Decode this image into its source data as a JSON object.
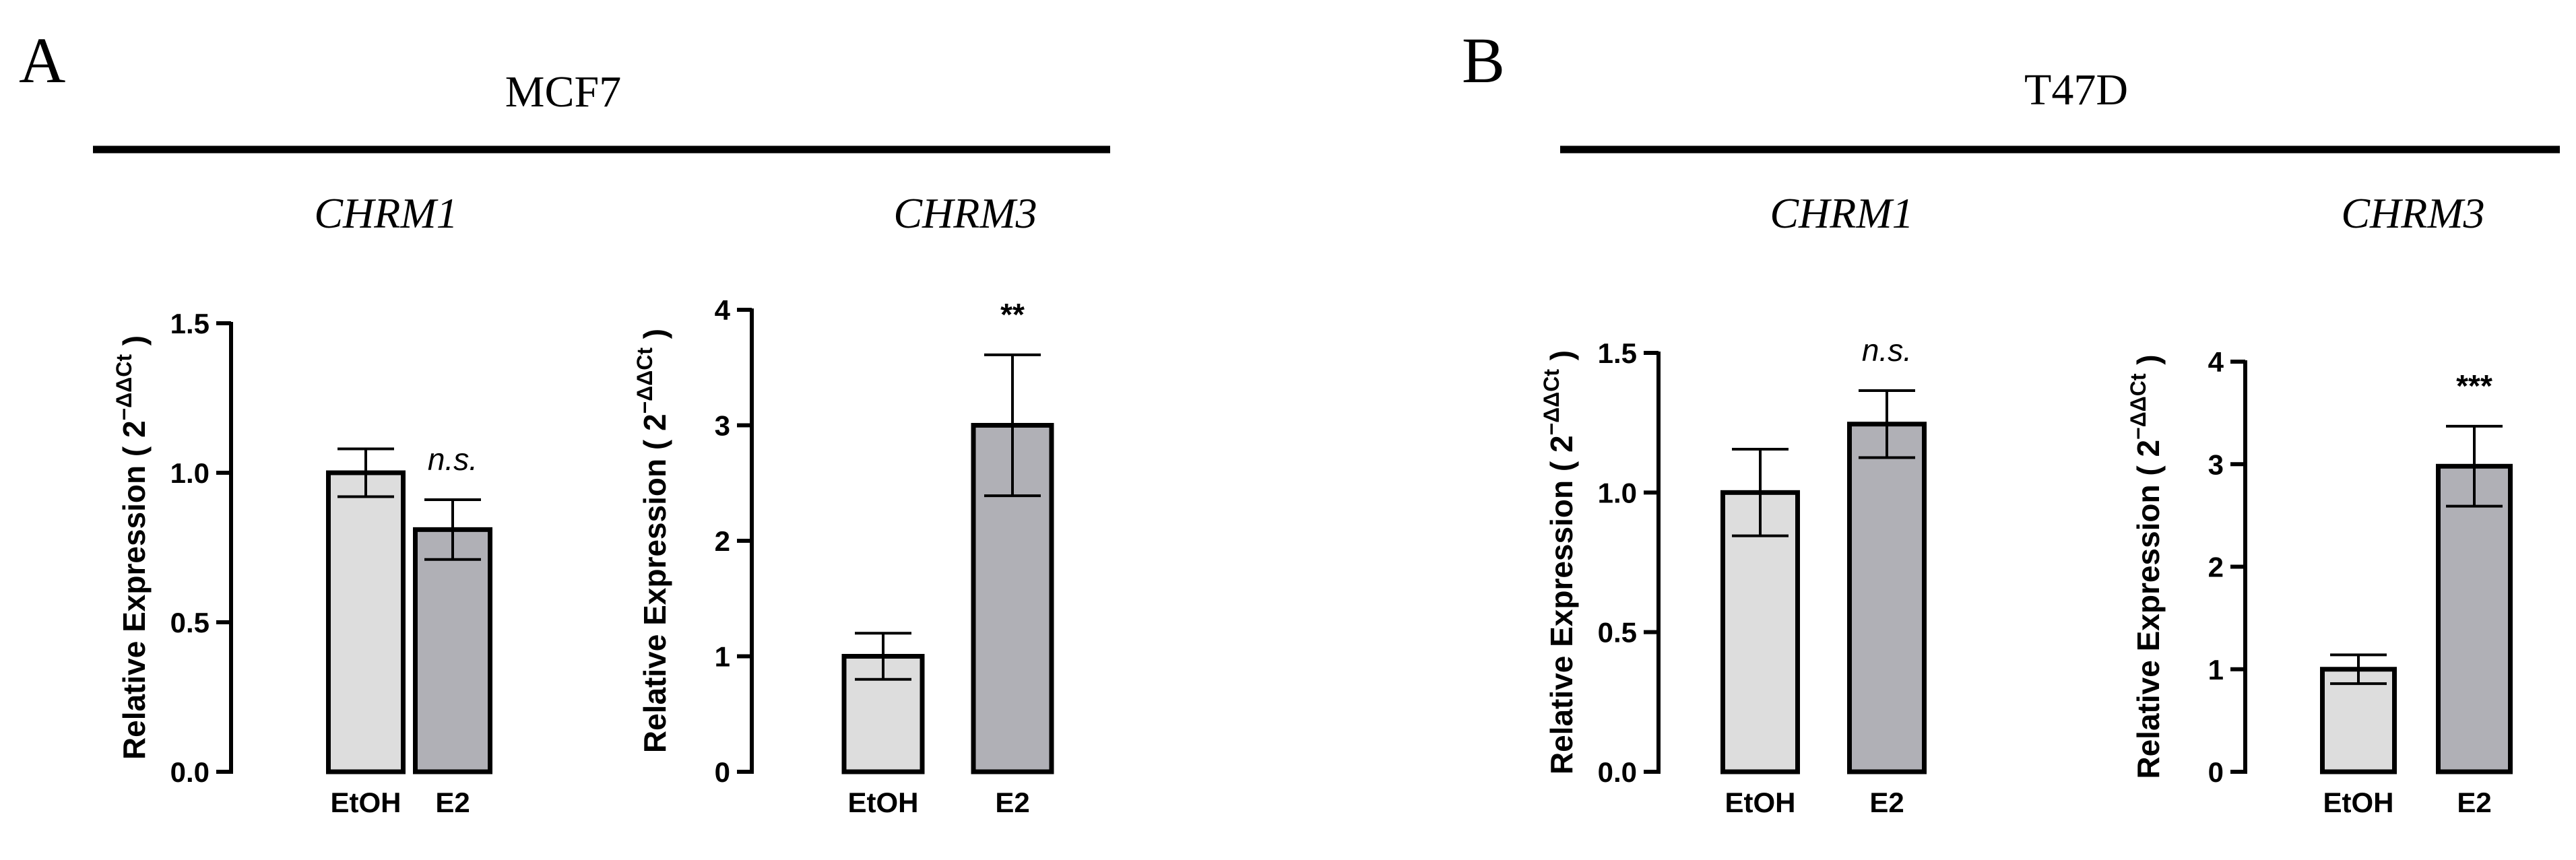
{
  "panels": [
    {
      "letter": "A",
      "cell_line": "MCF7",
      "charts": [
        {
          "type": "bar",
          "title": "CHRM1",
          "ylabel": "Relative Expression ( 2",
          "ylabel_exp": "−ΔΔCt",
          "ylabel_close": " )",
          "categories": [
            "EtOH",
            "E2"
          ],
          "values": [
            1.0,
            0.81
          ],
          "errors": [
            0.08,
            0.1
          ],
          "ylim": [
            0,
            1.5
          ],
          "yticks": [
            "0.0",
            "0.5",
            "1.0",
            "1.5"
          ],
          "significance": "n.s.",
          "significance_style": "italic",
          "bar_colors": [
            "#dddddd",
            "#b0b0b6"
          ]
        },
        {
          "type": "bar",
          "title": "CHRM3",
          "ylabel": "Relative Expression ( 2",
          "ylabel_exp": "−ΔΔCt",
          "ylabel_close": " )",
          "categories": [
            "EtOH",
            "E2"
          ],
          "values": [
            1.0,
            3.0
          ],
          "errors": [
            0.2,
            0.61
          ],
          "ylim": [
            0,
            4
          ],
          "yticks": [
            "0",
            "1",
            "2",
            "3",
            "4"
          ],
          "significance": "**",
          "significance_style": "bold",
          "bar_colors": [
            "#dddddd",
            "#b0b0b6"
          ]
        }
      ]
    },
    {
      "letter": "B",
      "cell_line": "T47D",
      "charts": [
        {
          "type": "bar",
          "title": "CHRM1",
          "ylabel": "Relative Expression ( 2",
          "ylabel_exp": "−ΔΔCt",
          "ylabel_close": " )",
          "categories": [
            "EtOH",
            "E2"
          ],
          "values": [
            1.0,
            1.245
          ],
          "errors": [
            0.155,
            0.12
          ],
          "ylim": [
            0,
            1.5
          ],
          "yticks": [
            "0.0",
            "0.5",
            "1.0",
            "1.5"
          ],
          "significance": "n.s.",
          "significance_style": "italic",
          "bar_colors": [
            "#dddddd",
            "#b0b0b6"
          ]
        },
        {
          "type": "bar",
          "title": "CHRM3",
          "ylabel": "Relative Expression ( 2",
          "ylabel_exp": "−ΔΔCt",
          "ylabel_close": " )",
          "categories": [
            "EtOH",
            "E2"
          ],
          "values": [
            1.0,
            2.98
          ],
          "errors": [
            0.14,
            0.39
          ],
          "ylim": [
            0,
            4
          ],
          "yticks": [
            "0",
            "1",
            "2",
            "3",
            "4"
          ],
          "significance": "***",
          "significance_style": "bold",
          "bar_colors": [
            "#dddddd",
            "#b0b0b6"
          ]
        }
      ]
    }
  ],
  "chart_data": [
    {
      "type": "bar",
      "panel": "A",
      "group": "MCF7",
      "title": "CHRM1",
      "categories": [
        "EtOH",
        "E2"
      ],
      "values": [
        1.0,
        0.81
      ],
      "errors": [
        0.08,
        0.1
      ],
      "ylabel": "Relative Expression ( 2−ΔΔCt )",
      "ylim": [
        0,
        1.5
      ],
      "annotation": "n.s."
    },
    {
      "type": "bar",
      "panel": "A",
      "group": "MCF7",
      "title": "CHRM3",
      "categories": [
        "EtOH",
        "E2"
      ],
      "values": [
        1.0,
        3.0
      ],
      "errors": [
        0.2,
        0.61
      ],
      "ylabel": "Relative Expression ( 2−ΔΔCt )",
      "ylim": [
        0,
        4
      ],
      "annotation": "**"
    },
    {
      "type": "bar",
      "panel": "B",
      "group": "T47D",
      "title": "CHRM1",
      "categories": [
        "EtOH",
        "E2"
      ],
      "values": [
        1.0,
        1.245
      ],
      "errors": [
        0.155,
        0.12
      ],
      "ylabel": "Relative Expression ( 2−ΔΔCt )",
      "ylim": [
        0,
        1.5
      ],
      "annotation": "n.s."
    },
    {
      "type": "bar",
      "panel": "B",
      "group": "T47D",
      "title": "CHRM3",
      "categories": [
        "EtOH",
        "E2"
      ],
      "values": [
        1.0,
        2.98
      ],
      "errors": [
        0.14,
        0.39
      ],
      "ylabel": "Relative Expression ( 2−ΔΔCt )",
      "ylim": [
        0,
        4
      ],
      "annotation": "***"
    }
  ]
}
